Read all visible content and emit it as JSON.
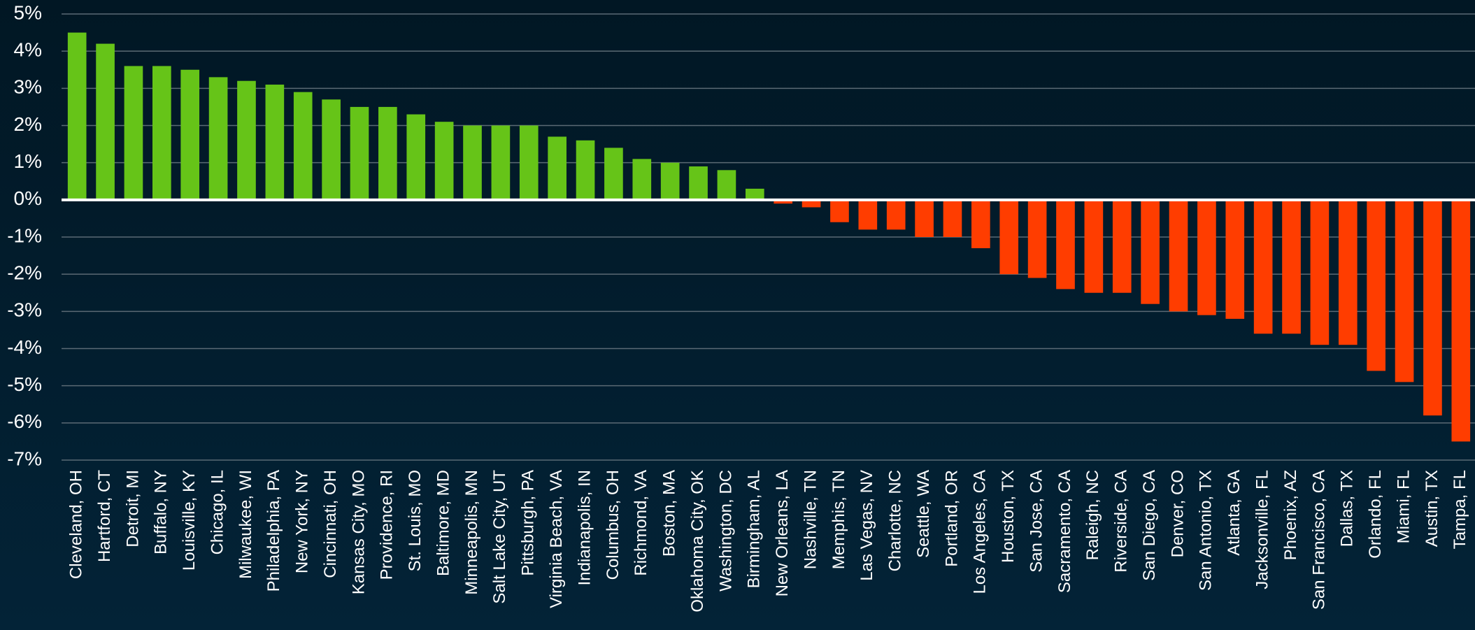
{
  "chart_data": {
    "type": "bar",
    "categories": [
      "Cleveland, OH",
      "Hartford, CT",
      "Detroit, MI",
      "Buffalo, NY",
      "Louisville, KY",
      "Chicago, IL",
      "Milwaukee, WI",
      "Philadelphia, PA",
      "New York, NY",
      "Cincinnati, OH",
      "Kansas City, MO",
      "Providence, RI",
      "St. Louis, MO",
      "Baltimore, MD",
      "Minneapolis, MN",
      "Salt Lake City, UT",
      "Pittsburgh, PA",
      "Virginia Beach, VA",
      "Indianapolis, IN",
      "Columbus, OH",
      "Richmond, VA",
      "Boston, MA",
      "Oklahoma City, OK",
      "Washington, DC",
      "Birmingham, AL",
      "New Orleans, LA",
      "Nashville, TN",
      "Memphis, TN",
      "Las Vegas, NV",
      "Charlotte, NC",
      "Seattle, WA",
      "Portland, OR",
      "Los Angeles, CA",
      "Houston, TX",
      "San Jose, CA",
      "Sacramento, CA",
      "Raleigh, NC",
      "Riverside, CA",
      "San Diego, CA",
      "Denver, CO",
      "San Antonio, TX",
      "Atlanta, GA",
      "Jacksonville, FL",
      "Phoenix, AZ",
      "San Francisco, CA",
      "Dallas, TX",
      "Orlando, FL",
      "Miami, FL",
      "Austin, TX",
      "Tampa, FL"
    ],
    "values": [
      4.5,
      4.2,
      3.6,
      3.6,
      3.5,
      3.3,
      3.2,
      3.1,
      2.9,
      2.7,
      2.5,
      2.5,
      2.3,
      2.1,
      2.0,
      2.0,
      2.0,
      1.7,
      1.6,
      1.4,
      1.1,
      1.0,
      0.9,
      0.8,
      0.3,
      -0.1,
      -0.2,
      -0.6,
      -0.8,
      -0.8,
      -1.0,
      -1.0,
      -1.3,
      -2.0,
      -2.1,
      -2.4,
      -2.5,
      -2.5,
      -2.8,
      -3.0,
      -3.1,
      -3.2,
      -3.6,
      -3.6,
      -3.9,
      -3.9,
      -4.6,
      -4.9,
      -5.8,
      -6.5
    ],
    "positive_color": "#66c418",
    "negative_color": "#ff3d00",
    "ylim": [
      -7,
      5
    ],
    "yticks": [
      {
        "value": 5,
        "label": "5%"
      },
      {
        "value": 4,
        "label": "4%"
      },
      {
        "value": 3,
        "label": "3%"
      },
      {
        "value": 2,
        "label": "2%"
      },
      {
        "value": 1,
        "label": "1%"
      },
      {
        "value": 0,
        "label": "0%"
      },
      {
        "value": -1,
        "label": "-1%"
      },
      {
        "value": -2,
        "label": "-2%"
      },
      {
        "value": -3,
        "label": "-3%"
      },
      {
        "value": -4,
        "label": "-4%"
      },
      {
        "value": -5,
        "label": "-5%"
      },
      {
        "value": -6,
        "label": "-6%"
      },
      {
        "value": -7,
        "label": "-7%"
      }
    ],
    "grid": true
  }
}
